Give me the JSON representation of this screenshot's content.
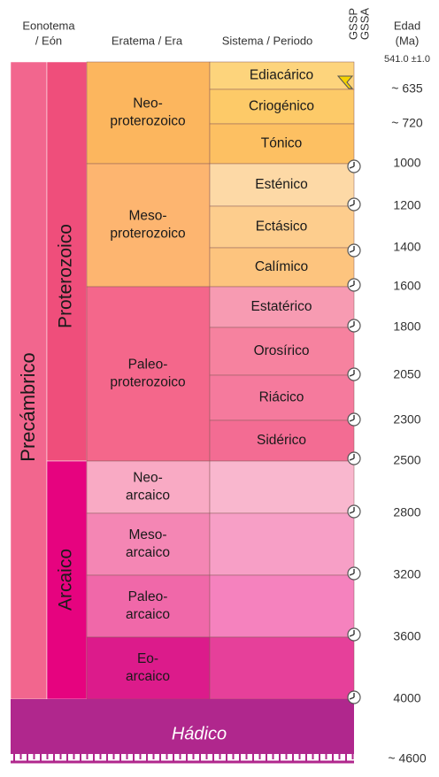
{
  "header": {
    "eon": [
      "Eonotema",
      "/ Eón"
    ],
    "era": "Eratema / Era",
    "system": "Sistema / Periodo",
    "gssp": "GSSP",
    "gssa": "GSSA",
    "age": [
      "Edad",
      "(Ma)"
    ],
    "top_age": "541.0 ±1.0"
  },
  "supereon": "Precámbrico",
  "eons": [
    "Proterozoico",
    "Arcaico"
  ],
  "eras": [
    [
      "Neo-",
      "proterozoico"
    ],
    [
      "Meso-",
      "proterozoico"
    ],
    [
      "Paleo-",
      "proterozoico"
    ],
    [
      "Neo-",
      "arcaico"
    ],
    [
      "Meso-",
      "arcaico"
    ],
    [
      "Paleo-",
      "arcaico"
    ],
    [
      "Eo-",
      "arcaico"
    ]
  ],
  "systems": [
    "Ediacárico",
    "Criogénico",
    "Tónico",
    "Esténico",
    "Ectásico",
    "Calímico",
    "Estatérico",
    "Orosírico",
    "Riácico",
    "Sidérico"
  ],
  "ages": [
    "~ 635",
    "~ 720",
    "1000",
    "1200",
    "1400",
    "1600",
    "1800",
    "2050",
    "2300",
    "2500",
    "2800",
    "3200",
    "3600",
    "4000",
    "~ 4600"
  ],
  "hadean": "Hádico"
}
